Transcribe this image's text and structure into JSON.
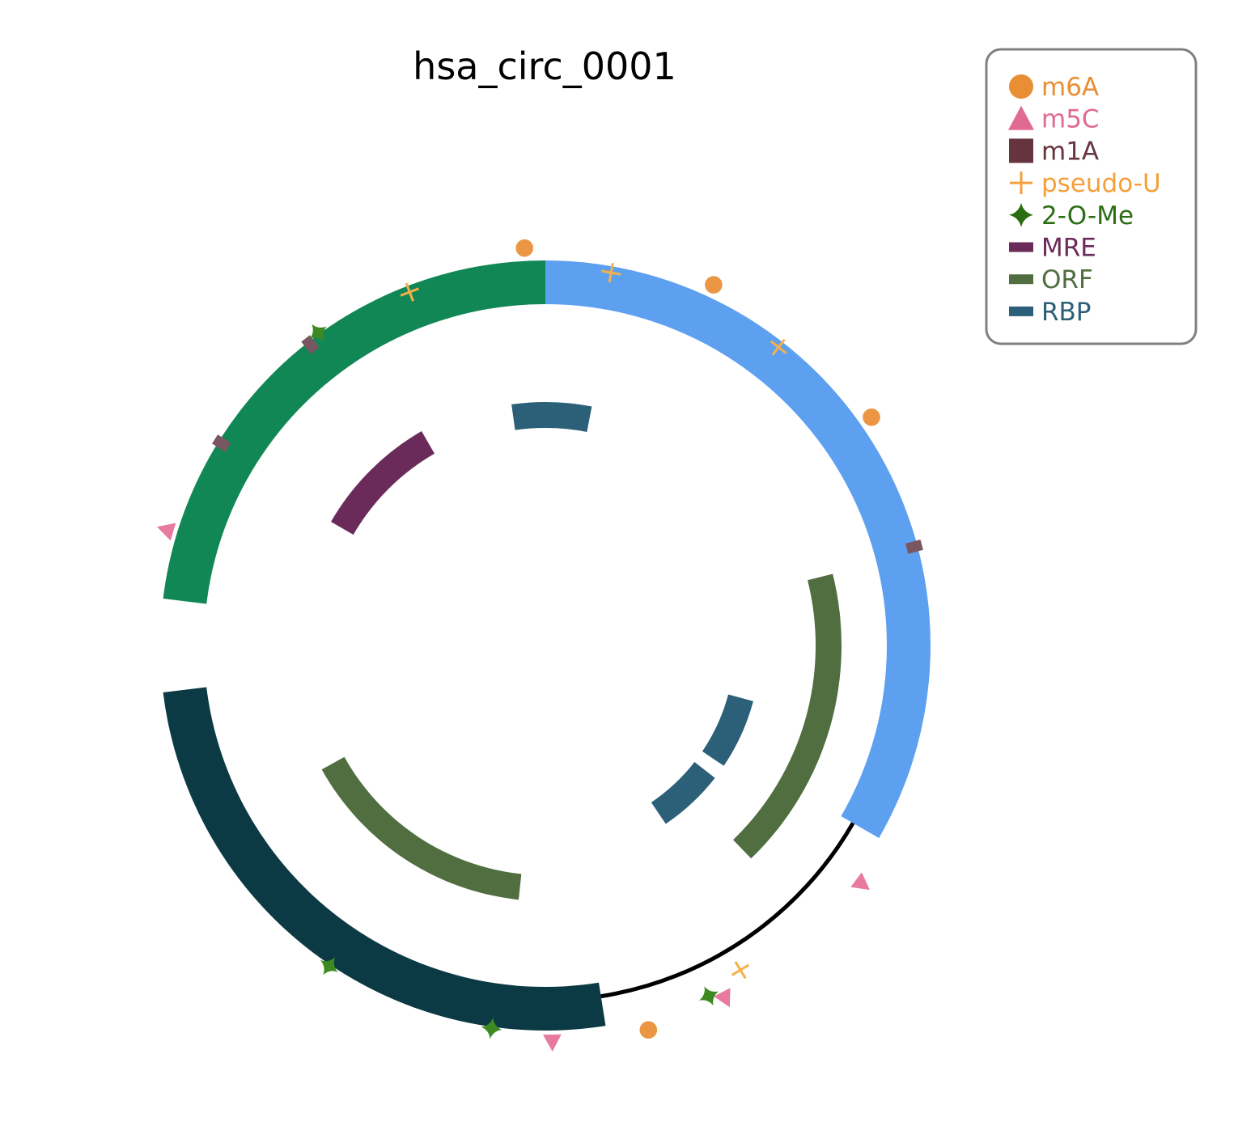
{
  "title": "hsa_circ_0001",
  "chart_data": {
    "type": "circular-track-diagram",
    "circle_degrees": 360,
    "exons": [
      {
        "start": 0,
        "end": 120,
        "color": "#5ea0f0"
      },
      {
        "start": 171,
        "end": 263,
        "color": "#0c3a44"
      },
      {
        "start": 277,
        "end": 360,
        "color": "#118755"
      }
    ],
    "backbone_arc": {
      "start": 120,
      "end": 171,
      "color": "#000000"
    },
    "inner_features": [
      {
        "type": "RBP",
        "start": 352,
        "end": 11
      },
      {
        "type": "MRE",
        "start": 300,
        "end": 330
      },
      {
        "type": "ORF",
        "start": 76,
        "end": 136
      },
      {
        "type": "RBP",
        "start": 105,
        "end": 124
      },
      {
        "type": "RBP",
        "start": 128,
        "end": 146
      },
      {
        "type": "ORF",
        "start": 186,
        "end": 241
      }
    ],
    "modifications": [
      {
        "type": "m6A",
        "angle": 357
      },
      {
        "type": "m6A",
        "angle": 25
      },
      {
        "type": "m6A",
        "angle": 55
      },
      {
        "type": "m6A",
        "angle": 165
      },
      {
        "type": "pseudo-U",
        "angle": 10
      },
      {
        "type": "pseudo-U",
        "angle": 38
      },
      {
        "type": "pseudo-U",
        "angle": 339
      },
      {
        "type": "pseudo-U",
        "angle": 149
      },
      {
        "type": "m1A",
        "angle": 75
      },
      {
        "type": "m1A",
        "angle": 322
      },
      {
        "type": "m1A",
        "angle": 302
      },
      {
        "type": "m5C",
        "angle": 287
      },
      {
        "type": "m5C",
        "angle": 127
      },
      {
        "type": "m5C",
        "angle": 153
      },
      {
        "type": "m5C",
        "angle": 179
      },
      {
        "type": "2-O-Me",
        "angle": 324
      },
      {
        "type": "2-O-Me",
        "angle": 155
      },
      {
        "type": "2-O-Me",
        "angle": 188
      },
      {
        "type": "2-O-Me",
        "angle": 214
      }
    ],
    "legend": {
      "position": "top-right",
      "items": [
        {
          "label": "m6A",
          "symbol": "circle",
          "color": "#e88e35"
        },
        {
          "label": "m5C",
          "symbol": "triangle",
          "color": "#e06b90"
        },
        {
          "label": "m1A",
          "symbol": "square",
          "color": "#66343e"
        },
        {
          "label": "pseudo-U",
          "symbol": "plus",
          "color": "#f5a03a"
        },
        {
          "label": "2-O-Me",
          "symbol": "star4",
          "color": "#2a6e12"
        },
        {
          "label": "MRE",
          "symbol": "bar",
          "color": "#6b2b5a"
        },
        {
          "label": "ORF",
          "symbol": "bar",
          "color": "#506e40"
        },
        {
          "label": "RBP",
          "symbol": "bar",
          "color": "#2b6078"
        }
      ]
    },
    "colors": {
      "m6A": "#ea9645",
      "m5C": "#e8799f",
      "m1A": "#7a5660",
      "pseudo-U": "#f5b04a",
      "2-O-Me": "#3d8a22",
      "MRE": "#6b2b5a",
      "ORF": "#506e40",
      "RBP": "#2b6078"
    }
  }
}
